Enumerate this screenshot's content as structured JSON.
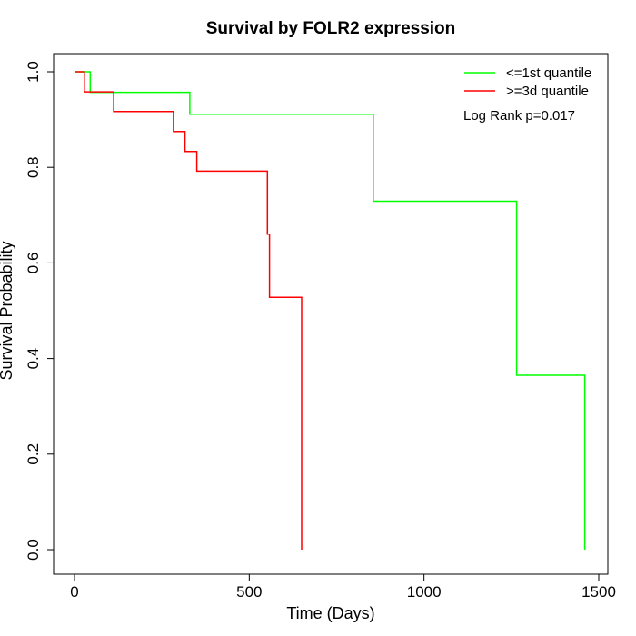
{
  "chart_data": {
    "type": "line",
    "title": "Survival by FOLR2 expression",
    "xlabel": "Time (Days)",
    "ylabel": "Survival Probability",
    "xlim": [
      0,
      1500
    ],
    "ylim": [
      0,
      1
    ],
    "x_ticks": [
      "0",
      "500",
      "1000",
      "1500"
    ],
    "y_ticks": [
      "0.0",
      "0.2",
      "0.4",
      "0.6",
      "0.8",
      "1.0"
    ],
    "grid": false,
    "legend_position": "top-right",
    "annotation": "Log Rank p=0.017",
    "series": [
      {
        "name": "<=1st quantile",
        "color": "#00ff00",
        "step_points": [
          [
            0,
            1.0
          ],
          [
            45,
            1.0
          ],
          [
            45,
            0.957
          ],
          [
            330,
            0.957
          ],
          [
            330,
            0.911
          ],
          [
            855,
            0.911
          ],
          [
            855,
            0.729
          ],
          [
            1265,
            0.729
          ],
          [
            1265,
            0.365
          ],
          [
            1460,
            0.365
          ],
          [
            1460,
            0.0
          ]
        ]
      },
      {
        "name": ">=3d quantile",
        "color": "#ff0000",
        "step_points": [
          [
            0,
            1.0
          ],
          [
            28,
            1.0
          ],
          [
            28,
            0.958
          ],
          [
            112,
            0.958
          ],
          [
            112,
            0.917
          ],
          [
            283,
            0.917
          ],
          [
            283,
            0.875
          ],
          [
            316,
            0.875
          ],
          [
            316,
            0.833
          ],
          [
            350,
            0.833
          ],
          [
            350,
            0.792
          ],
          [
            552,
            0.792
          ],
          [
            552,
            0.66
          ],
          [
            558,
            0.66
          ],
          [
            558,
            0.528
          ],
          [
            650,
            0.528
          ],
          [
            650,
            0.0
          ]
        ]
      }
    ]
  }
}
